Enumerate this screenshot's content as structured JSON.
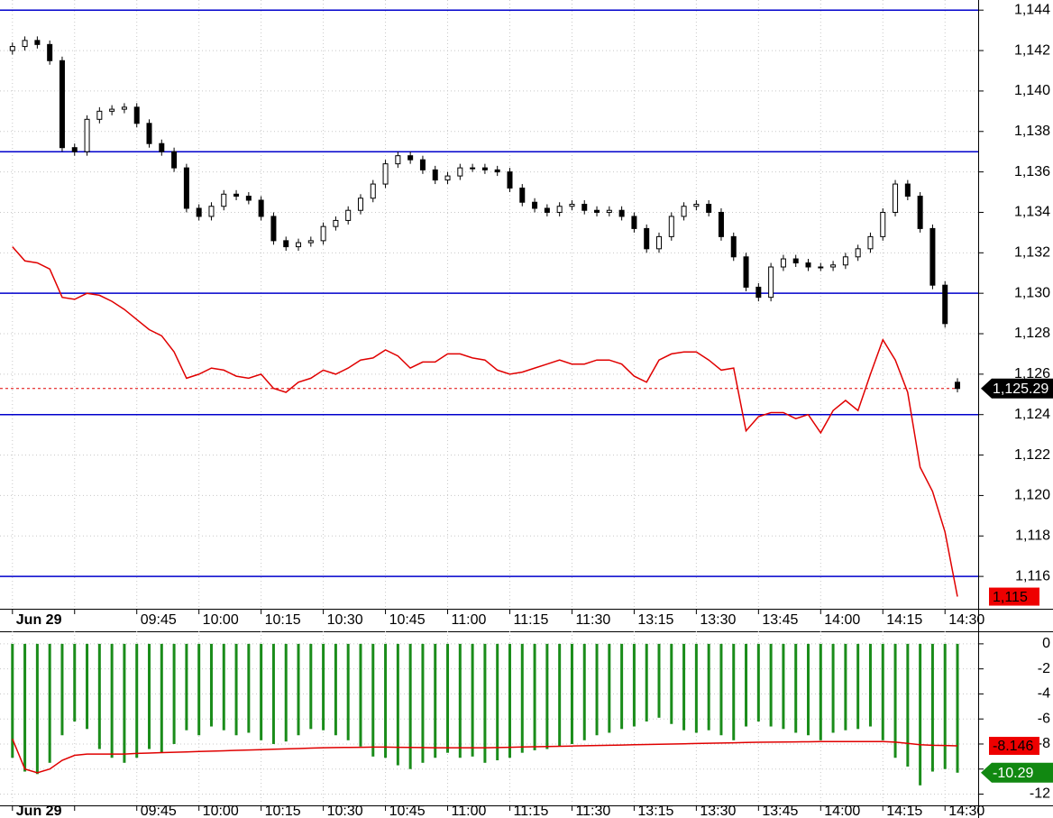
{
  "chart_data": [
    {
      "type": "candlestick",
      "x": [
        0,
        3,
        6,
        9,
        12,
        15,
        18,
        21,
        24,
        27,
        30,
        33,
        36,
        39,
        42,
        45,
        48,
        51,
        54,
        57,
        60,
        63,
        66,
        69,
        72,
        75,
        78,
        81,
        84,
        87,
        90,
        93,
        96,
        99,
        102,
        105,
        108,
        111,
        114,
        117,
        120,
        123,
        126,
        129,
        132,
        135,
        138,
        141,
        144,
        147,
        150,
        153,
        156,
        159,
        162,
        165,
        168,
        171,
        174,
        177,
        180,
        183,
        186,
        189,
        192,
        195,
        198,
        201,
        204,
        207,
        210,
        213,
        216,
        219,
        222,
        225,
        228
      ],
      "xlim": [
        -3,
        233
      ],
      "xticks": [
        {
          "value": 0,
          "label": "Jun 29"
        },
        {
          "value": 15,
          "label": null
        },
        {
          "value": 30,
          "label": "09:45"
        },
        {
          "value": 45,
          "label": "10:00"
        },
        {
          "value": 60,
          "label": "10:15"
        },
        {
          "value": 75,
          "label": "10:30"
        },
        {
          "value": 90,
          "label": "10:45"
        },
        {
          "value": 105,
          "label": "11:00"
        },
        {
          "value": 120,
          "label": "11:15"
        },
        {
          "value": 135,
          "label": "11:30"
        },
        {
          "value": 150,
          "label": "13:15"
        },
        {
          "value": 165,
          "label": "13:30"
        },
        {
          "value": 180,
          "label": "13:45"
        },
        {
          "value": 195,
          "label": "14:00"
        },
        {
          "value": 210,
          "label": "14:15"
        },
        {
          "value": 225,
          "label": "14:30"
        }
      ],
      "ylim": [
        1114.4,
        1144.5
      ],
      "yticks": [
        {
          "value": 1116,
          "label": "1,116"
        },
        {
          "value": 1118,
          "label": "1,118"
        },
        {
          "value": 1120,
          "label": "1,120"
        },
        {
          "value": 1122,
          "label": "1,122"
        },
        {
          "value": 1124,
          "label": "1,124"
        },
        {
          "value": 1126,
          "label": "1,126"
        },
        {
          "value": 1128,
          "label": "1,128"
        },
        {
          "value": 1130,
          "label": "1,130"
        },
        {
          "value": 1132,
          "label": "1,132"
        },
        {
          "value": 1134,
          "label": "1,134"
        },
        {
          "value": 1136,
          "label": "1,136"
        },
        {
          "value": 1138,
          "label": "1,138"
        },
        {
          "value": 1140,
          "label": "1,140"
        },
        {
          "value": 1142,
          "label": "1,142"
        },
        {
          "value": 1144,
          "label": "1,144"
        }
      ],
      "grid": true,
      "candles": {
        "up_color": "#ffffff",
        "down_color": "#000000",
        "open": [
          1142.0,
          1142.2,
          1142.5,
          1142.3,
          1141.5,
          1137.2,
          1137.0,
          1138.6,
          1139.0,
          1139.1,
          1139.2,
          1138.4,
          1137.4,
          1137.0,
          1136.2,
          1134.2,
          1133.8,
          1134.3,
          1134.9,
          1134.8,
          1134.6,
          1133.8,
          1132.6,
          1132.3,
          1132.5,
          1132.6,
          1133.3,
          1133.6,
          1134.1,
          1134.7,
          1135.4,
          1136.4,
          1136.8,
          1136.6,
          1136.1,
          1135.6,
          1135.8,
          1136.2,
          1136.2,
          1136.1,
          1136.0,
          1135.2,
          1134.5,
          1134.2,
          1134.0,
          1134.3,
          1134.4,
          1134.1,
          1134.0,
          1134.1,
          1133.8,
          1133.2,
          1132.2,
          1132.8,
          1133.8,
          1134.3,
          1134.4,
          1134.0,
          1132.8,
          1131.8,
          1130.3,
          1129.8,
          1131.3,
          1131.7,
          1131.5,
          1131.3,
          1131.3,
          1131.4,
          1131.8,
          1132.2,
          1132.8,
          1134.0,
          1135.4,
          1134.8,
          1133.2,
          1130.4,
          1125.6
        ],
        "high": [
          1142.4,
          1142.7,
          1142.7,
          1142.5,
          1141.7,
          1137.4,
          1138.8,
          1139.2,
          1139.3,
          1139.4,
          1139.4,
          1138.6,
          1137.6,
          1137.2,
          1136.4,
          1134.4,
          1134.5,
          1135.1,
          1135.1,
          1135.0,
          1134.8,
          1134.0,
          1132.8,
          1132.7,
          1132.8,
          1133.5,
          1133.8,
          1134.3,
          1134.9,
          1135.6,
          1136.6,
          1137.0,
          1137.0,
          1136.8,
          1136.3,
          1136.0,
          1136.4,
          1136.4,
          1136.4,
          1136.3,
          1136.2,
          1135.4,
          1134.7,
          1134.4,
          1134.5,
          1134.6,
          1134.6,
          1134.3,
          1134.3,
          1134.3,
          1134.0,
          1133.4,
          1133.0,
          1134.0,
          1134.5,
          1134.6,
          1134.6,
          1134.2,
          1133.0,
          1132.0,
          1130.5,
          1131.5,
          1131.9,
          1131.9,
          1131.7,
          1131.5,
          1131.6,
          1132.0,
          1132.4,
          1133.0,
          1134.2,
          1135.6,
          1135.6,
          1135.0,
          1133.4,
          1130.6,
          1125.8
        ],
        "low": [
          1141.8,
          1142.0,
          1142.1,
          1141.3,
          1137.0,
          1136.8,
          1136.8,
          1138.4,
          1138.8,
          1138.9,
          1138.2,
          1137.2,
          1136.8,
          1136.0,
          1134.0,
          1133.6,
          1133.6,
          1134.1,
          1134.6,
          1134.4,
          1133.6,
          1132.4,
          1132.1,
          1132.1,
          1132.3,
          1132.4,
          1133.1,
          1133.4,
          1133.9,
          1134.5,
          1135.2,
          1136.2,
          1136.4,
          1135.9,
          1135.4,
          1135.4,
          1135.6,
          1136.0,
          1135.9,
          1135.8,
          1135.0,
          1134.3,
          1134.0,
          1133.8,
          1133.8,
          1134.1,
          1133.9,
          1133.8,
          1133.8,
          1133.6,
          1133.0,
          1132.0,
          1132.0,
          1132.6,
          1133.6,
          1134.1,
          1133.8,
          1132.6,
          1131.6,
          1130.1,
          1129.6,
          1129.6,
          1131.1,
          1131.3,
          1131.1,
          1131.1,
          1131.1,
          1131.2,
          1131.6,
          1132.0,
          1132.6,
          1133.8,
          1134.6,
          1133.0,
          1130.2,
          1128.3,
          1125.1
        ],
        "close": [
          1142.2,
          1142.5,
          1142.3,
          1141.5,
          1137.2,
          1137.0,
          1138.6,
          1139.0,
          1139.1,
          1139.2,
          1138.4,
          1137.4,
          1137.0,
          1136.2,
          1134.2,
          1133.8,
          1134.3,
          1134.9,
          1134.8,
          1134.6,
          1133.8,
          1132.6,
          1132.3,
          1132.5,
          1132.6,
          1133.3,
          1133.6,
          1134.1,
          1134.7,
          1135.4,
          1136.4,
          1136.8,
          1136.6,
          1136.1,
          1135.6,
          1135.8,
          1136.2,
          1136.2,
          1136.1,
          1136.0,
          1135.2,
          1134.5,
          1134.2,
          1134.0,
          1134.3,
          1134.4,
          1134.1,
          1134.0,
          1134.1,
          1133.8,
          1133.2,
          1132.2,
          1132.8,
          1133.8,
          1134.3,
          1134.4,
          1134.0,
          1132.8,
          1131.8,
          1130.3,
          1129.8,
          1131.3,
          1131.7,
          1131.5,
          1131.3,
          1131.3,
          1131.4,
          1131.8,
          1132.2,
          1132.8,
          1134.0,
          1135.4,
          1134.8,
          1133.2,
          1130.4,
          1128.5,
          1125.29
        ]
      },
      "series": [
        {
          "type": "line",
          "color": "#e00000",
          "values": [
            1132.3,
            1131.6,
            1131.5,
            1131.2,
            1129.8,
            1129.7,
            1130.0,
            1129.9,
            1129.6,
            1129.2,
            1128.7,
            1128.2,
            1127.9,
            1127.1,
            1125.8,
            1126.0,
            1126.3,
            1126.2,
            1125.9,
            1125.8,
            1126.0,
            1125.3,
            1125.1,
            1125.6,
            1125.8,
            1126.2,
            1126.0,
            1126.3,
            1126.7,
            1126.8,
            1127.2,
            1126.9,
            1126.3,
            1126.6,
            1126.6,
            1127.0,
            1127.0,
            1126.8,
            1126.7,
            1126.2,
            1126.0,
            1126.1,
            1126.3,
            1126.5,
            1126.7,
            1126.5,
            1126.5,
            1126.7,
            1126.7,
            1126.5,
            1125.9,
            1125.6,
            1126.7,
            1127.0,
            1127.1,
            1127.1,
            1126.7,
            1126.2,
            1126.3,
            1123.2,
            1123.9,
            1124.1,
            1124.1,
            1123.8,
            1124.0,
            1123.1,
            1124.2,
            1124.7,
            1124.2,
            1126.0,
            1127.7,
            1126.7,
            1125.1,
            1121.4,
            1120.2,
            1118.2,
            1115.0
          ]
        }
      ],
      "levels": [
        1144,
        1137,
        1130,
        1124,
        1116
      ],
      "level_color": "#0000cc",
      "price_tags": [
        {
          "value": 1125.29,
          "label": "1,125.29",
          "color": "#000000",
          "arrow": true,
          "dashed": true
        },
        {
          "value": 1115,
          "label": "1,115",
          "color": "#ee0000",
          "arrow": false,
          "dashed": false
        }
      ]
    },
    {
      "type": "bar_line",
      "x": [
        0,
        3,
        6,
        9,
        12,
        15,
        18,
        21,
        24,
        27,
        30,
        33,
        36,
        39,
        42,
        45,
        48,
        51,
        54,
        57,
        60,
        63,
        66,
        69,
        72,
        75,
        78,
        81,
        84,
        87,
        90,
        93,
        96,
        99,
        102,
        105,
        108,
        111,
        114,
        117,
        120,
        123,
        126,
        129,
        132,
        135,
        138,
        141,
        144,
        147,
        150,
        153,
        156,
        159,
        162,
        165,
        168,
        171,
        174,
        177,
        180,
        183,
        186,
        189,
        192,
        195,
        198,
        201,
        204,
        207,
        210,
        213,
        216,
        219,
        222,
        225,
        228
      ],
      "xlim": [
        -3,
        233
      ],
      "xticks": [
        {
          "value": 0,
          "label": "Jun 29"
        },
        {
          "value": 15,
          "label": null
        },
        {
          "value": 30,
          "label": "09:45"
        },
        {
          "value": 45,
          "label": "10:00"
        },
        {
          "value": 60,
          "label": "10:15"
        },
        {
          "value": 75,
          "label": "10:30"
        },
        {
          "value": 90,
          "label": "10:45"
        },
        {
          "value": 105,
          "label": "11:00"
        },
        {
          "value": 120,
          "label": "11:15"
        },
        {
          "value": 135,
          "label": "11:30"
        },
        {
          "value": 150,
          "label": "13:15"
        },
        {
          "value": 165,
          "label": "13:30"
        },
        {
          "value": 180,
          "label": "13:45"
        },
        {
          "value": 195,
          "label": "14:00"
        },
        {
          "value": 210,
          "label": "14:15"
        },
        {
          "value": 225,
          "label": "14:30"
        }
      ],
      "ylim": [
        -12.9,
        1.0
      ],
      "yticks": [
        0,
        -2,
        -4,
        -6,
        -8,
        -10,
        -12
      ],
      "grid": true,
      "series": [
        {
          "type": "bar",
          "color": "#1a8c1a",
          "values": [
            -9.1,
            -10.2,
            -10.4,
            -9.5,
            -7.3,
            -6.2,
            -6.8,
            -8.4,
            -9.1,
            -9.5,
            -9.1,
            -8.4,
            -8.7,
            -8.0,
            -6.9,
            -7.3,
            -6.6,
            -6.9,
            -7.3,
            -7.1,
            -7.7,
            -8.0,
            -7.8,
            -7.3,
            -6.8,
            -6.9,
            -7.3,
            -7.7,
            -8.2,
            -9.0,
            -9.1,
            -9.7,
            -10.0,
            -9.5,
            -9.1,
            -8.7,
            -9.1,
            -9.0,
            -9.5,
            -9.3,
            -9.1,
            -8.7,
            -8.5,
            -8.4,
            -8.2,
            -8.0,
            -7.7,
            -7.3,
            -7.1,
            -6.8,
            -6.6,
            -6.2,
            -5.9,
            -6.4,
            -6.9,
            -7.1,
            -6.9,
            -7.3,
            -7.7,
            -6.6,
            -6.2,
            -6.6,
            -6.8,
            -7.1,
            -7.3,
            -7.7,
            -7.1,
            -6.9,
            -6.8,
            -6.6,
            -7.7,
            -9.1,
            -9.8,
            -11.3,
            -10.2,
            -10.0,
            -10.29
          ]
        },
        {
          "type": "line",
          "color": "#e00000",
          "values": [
            -7.6,
            -10.0,
            -10.3,
            -10.0,
            -9.3,
            -8.9,
            -8.8,
            -8.8,
            -8.8,
            -8.8,
            -8.75,
            -8.72,
            -8.69,
            -8.66,
            -8.63,
            -8.6,
            -8.57,
            -8.54,
            -8.51,
            -8.48,
            -8.45,
            -8.42,
            -8.39,
            -8.36,
            -8.33,
            -8.3,
            -8.28,
            -8.27,
            -8.26,
            -8.25,
            -8.25,
            -8.26,
            -8.27,
            -8.28,
            -8.3,
            -8.3,
            -8.3,
            -8.3,
            -8.3,
            -8.28,
            -8.26,
            -8.24,
            -8.22,
            -8.2,
            -8.18,
            -8.16,
            -8.14,
            -8.12,
            -8.1,
            -8.08,
            -8.06,
            -8.04,
            -8.02,
            -8.0,
            -7.98,
            -7.96,
            -7.94,
            -7.92,
            -7.9,
            -7.88,
            -7.86,
            -7.85,
            -7.84,
            -7.83,
            -7.82,
            -7.81,
            -7.8,
            -7.8,
            -7.8,
            -7.8,
            -7.8,
            -7.85,
            -7.95,
            -8.05,
            -8.1,
            -8.12,
            -8.146
          ]
        }
      ],
      "price_tags": [
        {
          "value": -8.146,
          "label": "-8.146",
          "color": "#ee0000",
          "arrow": false,
          "dashed": false
        },
        {
          "value": -10.29,
          "label": "-10.29",
          "color": "#118811",
          "arrow": true,
          "dashed": false
        }
      ]
    }
  ]
}
